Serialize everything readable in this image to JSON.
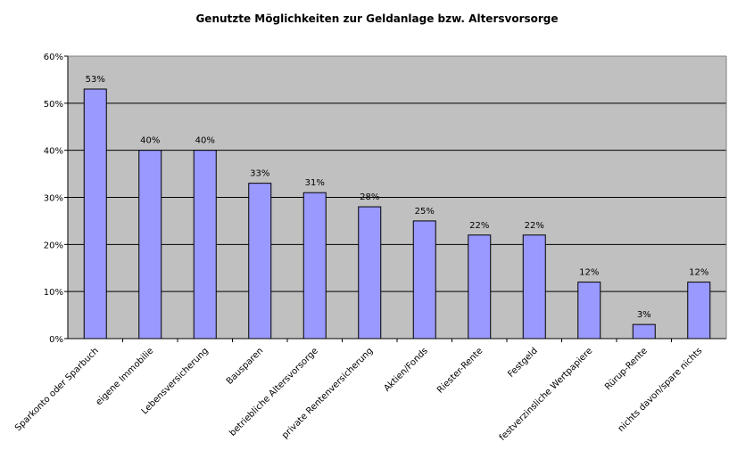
{
  "chart_data": {
    "type": "bar",
    "title": "Genutzte Möglichkeiten zur Geldanlage bzw. Altersvorsorge",
    "xlabel": "",
    "ylabel": "",
    "ylim": [
      0,
      60
    ],
    "yticks": [
      "0%",
      "10%",
      "20%",
      "30%",
      "40%",
      "50%",
      "60%"
    ],
    "categories": [
      "Sparkonto oder Sparbuch",
      "eigene Immobilie",
      "Lebensversicherung",
      "Bausparen",
      "betriebliche Altersvorsorge",
      "private Rentenversicherung",
      "Aktien/Fonds",
      "Riester-Rente",
      "Festgeld",
      "festverzinsliche Wertpapiere",
      "Rürup-Rente",
      "nichts davon/spare nichts"
    ],
    "values": [
      53,
      40,
      40,
      33,
      31,
      28,
      25,
      22,
      22,
      12,
      3,
      12
    ],
    "data_labels": [
      "53%",
      "40%",
      "40%",
      "33%",
      "31%",
      "28%",
      "25%",
      "22%",
      "22%",
      "12%",
      "3%",
      "12%"
    ],
    "grid": true,
    "legend": "none",
    "colors": {
      "bar": "#9999ff",
      "plot_background": "#c0c0c0",
      "gridline": "#000000"
    }
  }
}
